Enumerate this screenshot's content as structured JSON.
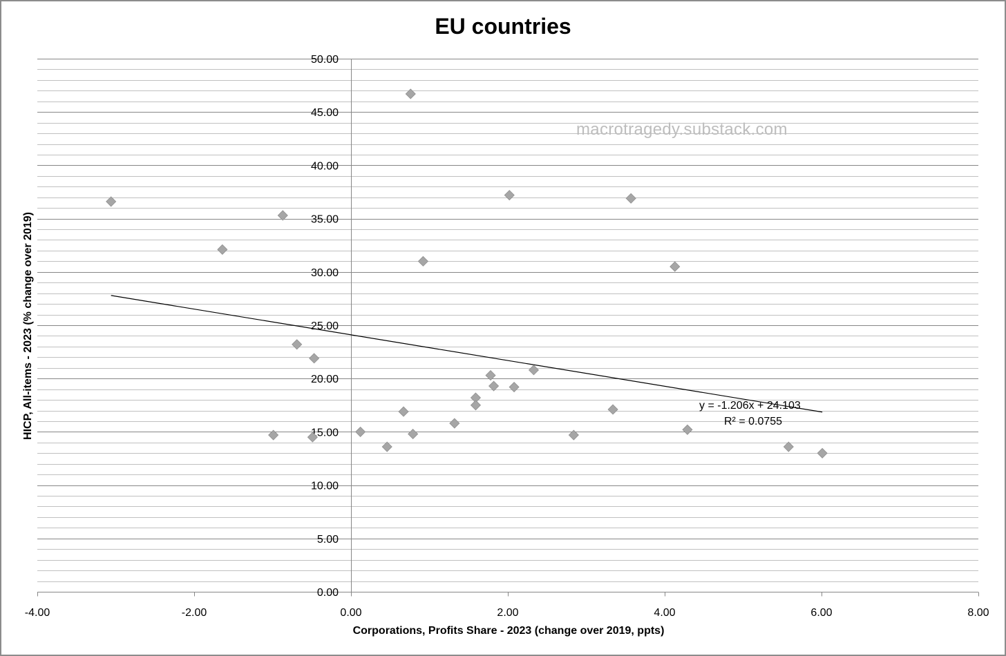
{
  "colors": {
    "marker": "#a6a6a6",
    "major_grid": "#868686",
    "minor_grid": "#c0c0c0",
    "axis": "#868686",
    "trendline": "#000000"
  },
  "chart_data": {
    "type": "scatter",
    "title": "EU countries",
    "xlabel": "Corporations,  Profits Share - 2023 (change over 2019, ppts)",
    "ylabel": "HICP, All-items - 2023 (% change over 2019)",
    "xlim": [
      -4,
      8
    ],
    "ylim": [
      0,
      50
    ],
    "x_ticks": [
      "-4.00",
      "-2.00",
      "0.00",
      "2.00",
      "4.00",
      "6.00",
      "8.00"
    ],
    "y_ticks": [
      "0.00",
      "5.00",
      "10.00",
      "15.00",
      "20.00",
      "25.00",
      "30.00",
      "35.00",
      "40.00",
      "45.00",
      "50.00"
    ],
    "grid": "horizontal major and minor gridlines",
    "marker": "diamond",
    "watermark": "macrotragedy.substack.com",
    "points": [
      {
        "x": -3.06,
        "y": 36.6
      },
      {
        "x": -1.64,
        "y": 32.1
      },
      {
        "x": -0.87,
        "y": 35.3
      },
      {
        "x": -0.69,
        "y": 23.2
      },
      {
        "x": -0.47,
        "y": 21.9
      },
      {
        "x": -0.99,
        "y": 14.7
      },
      {
        "x": -0.49,
        "y": 14.5
      },
      {
        "x": 0.12,
        "y": 15.0
      },
      {
        "x": 0.46,
        "y": 13.6
      },
      {
        "x": 0.67,
        "y": 16.9
      },
      {
        "x": 0.76,
        "y": 46.7
      },
      {
        "x": 0.79,
        "y": 14.8
      },
      {
        "x": 0.92,
        "y": 31.0
      },
      {
        "x": 1.32,
        "y": 15.8
      },
      {
        "x": 1.59,
        "y": 18.2
      },
      {
        "x": 1.59,
        "y": 17.5
      },
      {
        "x": 1.78,
        "y": 20.3
      },
      {
        "x": 1.82,
        "y": 19.3
      },
      {
        "x": 2.02,
        "y": 37.2
      },
      {
        "x": 2.08,
        "y": 19.2
      },
      {
        "x": 2.33,
        "y": 20.8
      },
      {
        "x": 2.84,
        "y": 14.7
      },
      {
        "x": 3.34,
        "y": 17.1
      },
      {
        "x": 3.57,
        "y": 36.9
      },
      {
        "x": 4.13,
        "y": 30.5
      },
      {
        "x": 4.29,
        "y": 15.2
      },
      {
        "x": 5.58,
        "y": 13.6
      },
      {
        "x": 6.01,
        "y": 13.0
      }
    ],
    "trendline": {
      "slope": -1.206,
      "intercept": 24.103,
      "x_range": [
        -3.06,
        6.01
      ],
      "equation": "y = -1.206x + 24.103",
      "r_squared": "R² = 0.0755"
    }
  }
}
